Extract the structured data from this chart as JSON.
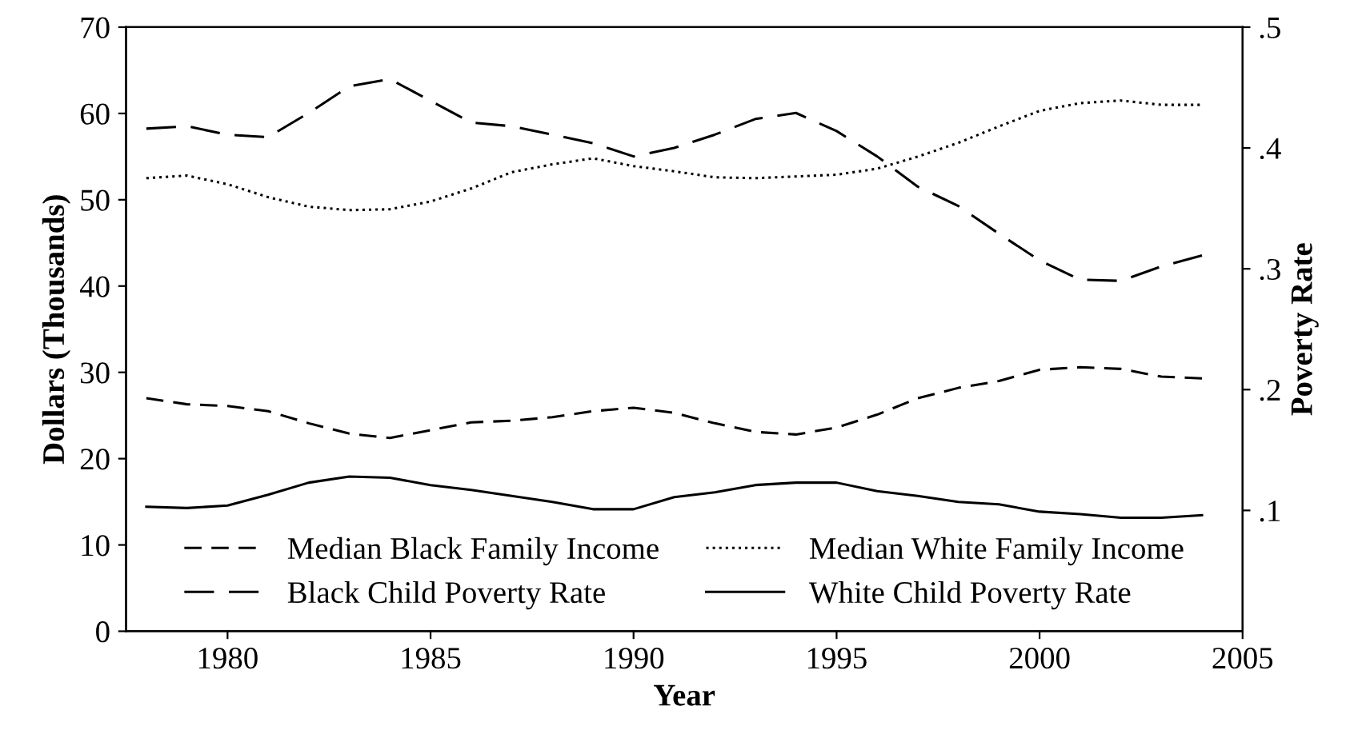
{
  "chart_data": {
    "type": "line",
    "xlabel": "Year",
    "ylabel": "Dollars (Thousands)",
    "y2label": "Poverty Rate",
    "x": [
      1978,
      1979,
      1980,
      1981,
      1982,
      1983,
      1984,
      1985,
      1986,
      1987,
      1988,
      1989,
      1990,
      1991,
      1992,
      1993,
      1994,
      1995,
      1996,
      1997,
      1998,
      1999,
      2000,
      2001,
      2002,
      2003,
      2004
    ],
    "series": [
      {
        "name": "Median Black Family Income",
        "color": "#000000",
        "line_style": "dashed",
        "values": [
          27,
          26.3,
          26.1,
          25.5,
          24.1,
          22.9,
          22.4,
          23.3,
          24.2,
          24.4,
          24.8,
          25.5,
          25.9,
          25.3,
          24.1,
          23.1,
          22.8,
          23.6,
          25.1,
          27,
          28.2,
          29,
          30.3,
          30.6,
          30.4,
          29.5,
          29.3
        ]
      },
      {
        "name": "Median White Family Income",
        "color": "#000000",
        "line_style": "dotted",
        "values": [
          52.5,
          52.8,
          51.8,
          50.3,
          49.2,
          48.8,
          48.9,
          49.8,
          51.3,
          53.2,
          54.1,
          54.8,
          53.9,
          53.3,
          52.6,
          52.5,
          52.7,
          52.9,
          53.6,
          55,
          56.6,
          58.5,
          60.3,
          61.2,
          61.5,
          61,
          61
        ]
      },
      {
        "name": "Black Child Poverty Rate",
        "color": "#000000",
        "line_style": "dashed",
        "axis": "y2",
        "values": [
          0.416,
          0.418,
          0.411,
          0.409,
          0.429,
          0.451,
          0.457,
          0.439,
          0.421,
          0.418,
          0.411,
          0.404,
          0.393,
          0.4,
          0.411,
          0.424,
          0.429,
          0.414,
          0.393,
          0.368,
          0.352,
          0.329,
          0.307,
          0.291,
          0.29,
          0.302,
          0.311
        ]
      },
      {
        "name": "White Child Poverty Rate",
        "color": "#000000",
        "line_style": "solid",
        "axis": "y2",
        "values": [
          0.103,
          0.102,
          0.104,
          0.113,
          0.123,
          0.128,
          0.127,
          0.121,
          0.117,
          0.112,
          0.107,
          0.101,
          0.101,
          0.111,
          0.115,
          0.121,
          0.123,
          0.123,
          0.116,
          0.112,
          0.107,
          0.105,
          0.099,
          0.097,
          0.094,
          0.094,
          0.096
        ]
      }
    ],
    "xlim": [
      1977.5,
      2005
    ],
    "xticks": [
      1980,
      1985,
      1990,
      1995,
      2000,
      2005
    ],
    "ylim": [
      0,
      70
    ],
    "yticks": [
      0,
      10,
      20,
      30,
      40,
      50,
      60,
      70
    ],
    "y2lim": [
      0,
      0.5
    ],
    "y2ticks": [
      {
        "value": 0.1,
        "label": ".1"
      },
      {
        "value": 0.2,
        "label": ".2"
      },
      {
        "value": 0.3,
        "label": ".3"
      },
      {
        "value": 0.4,
        "label": ".4"
      },
      {
        "value": 0.5,
        "label": ".5"
      }
    ],
    "grid": false,
    "legend": "bottom",
    "marker": "none"
  }
}
